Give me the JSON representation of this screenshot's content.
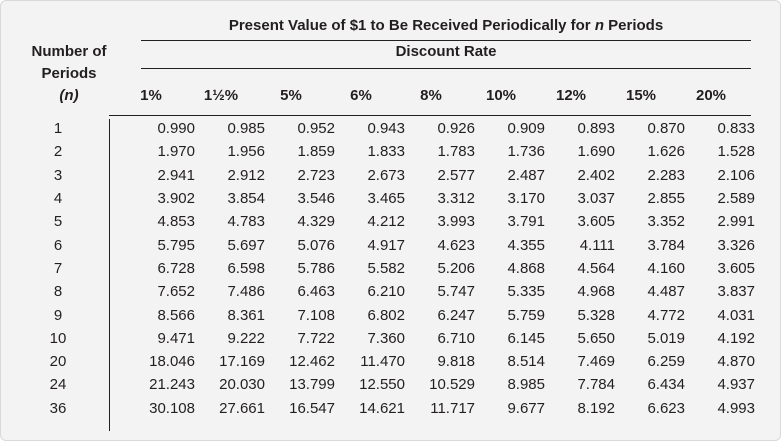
{
  "title": "Present Value of $1 to Be Received Periodically for n Periods",
  "title_parts": [
    "Present Value of $1 to Be Received Periodically for ",
    "n",
    " Periods"
  ],
  "subtitle": "Discount Rate",
  "row_header": {
    "line1": "Number of",
    "line2": "Periods",
    "line3": "(n)"
  },
  "rates": [
    "1%",
    "1½%",
    "5%",
    "6%",
    "8%",
    "10%",
    "12%",
    "15%",
    "20%"
  ],
  "rows": [
    {
      "n": "1",
      "values": [
        "0.990",
        "0.985",
        "0.952",
        "0.943",
        "0.926",
        "0.909",
        "0.893",
        "0.870",
        "0.833"
      ]
    },
    {
      "n": "2",
      "values": [
        "1.970",
        "1.956",
        "1.859",
        "1.833",
        "1.783",
        "1.736",
        "1.690",
        "1.626",
        "1.528"
      ]
    },
    {
      "n": "3",
      "values": [
        "2.941",
        "2.912",
        "2.723",
        "2.673",
        "2.577",
        "2.487",
        "2.402",
        "2.283",
        "2.106"
      ]
    },
    {
      "n": "4",
      "values": [
        "3.902",
        "3.854",
        "3.546",
        "3.465",
        "3.312",
        "3.170",
        "3.037",
        "2.855",
        "2.589"
      ]
    },
    {
      "n": "5",
      "values": [
        "4.853",
        "4.783",
        "4.329",
        "4.212",
        "3.993",
        "3.791",
        "3.605",
        "3.352",
        "2.991"
      ]
    },
    {
      "n": "6",
      "values": [
        "5.795",
        "5.697",
        "5.076",
        "4.917",
        "4.623",
        "4.355",
        "4.111",
        "3.784",
        "3.326"
      ]
    },
    {
      "n": "7",
      "values": [
        "6.728",
        "6.598",
        "5.786",
        "5.582",
        "5.206",
        "4.868",
        "4.564",
        "4.160",
        "3.605"
      ]
    },
    {
      "n": "8",
      "values": [
        "7.652",
        "7.486",
        "6.463",
        "6.210",
        "5.747",
        "5.335",
        "4.968",
        "4.487",
        "3.837"
      ]
    },
    {
      "n": "9",
      "values": [
        "8.566",
        "8.361",
        "7.108",
        "6.802",
        "6.247",
        "5.759",
        "5.328",
        "4.772",
        "4.031"
      ]
    },
    {
      "n": "10",
      "values": [
        "9.471",
        "9.222",
        "7.722",
        "7.360",
        "6.710",
        "6.145",
        "5.650",
        "5.019",
        "4.192"
      ]
    },
    {
      "n": "20",
      "values": [
        "18.046",
        "17.169",
        "12.462",
        "11.470",
        "9.818",
        "8.514",
        "7.469",
        "6.259",
        "4.870"
      ]
    },
    {
      "n": "24",
      "values": [
        "21.243",
        "20.030",
        "13.799",
        "12.550",
        "10.529",
        "8.985",
        "7.784",
        "6.434",
        "4.937"
      ]
    },
    {
      "n": "36",
      "values": [
        "30.108",
        "27.661",
        "16.547",
        "14.621",
        "11.717",
        "9.677",
        "8.192",
        "6.623",
        "4.993"
      ]
    }
  ],
  "colors": {
    "panel_background": "#f3f3f3",
    "text": "#231f20"
  }
}
